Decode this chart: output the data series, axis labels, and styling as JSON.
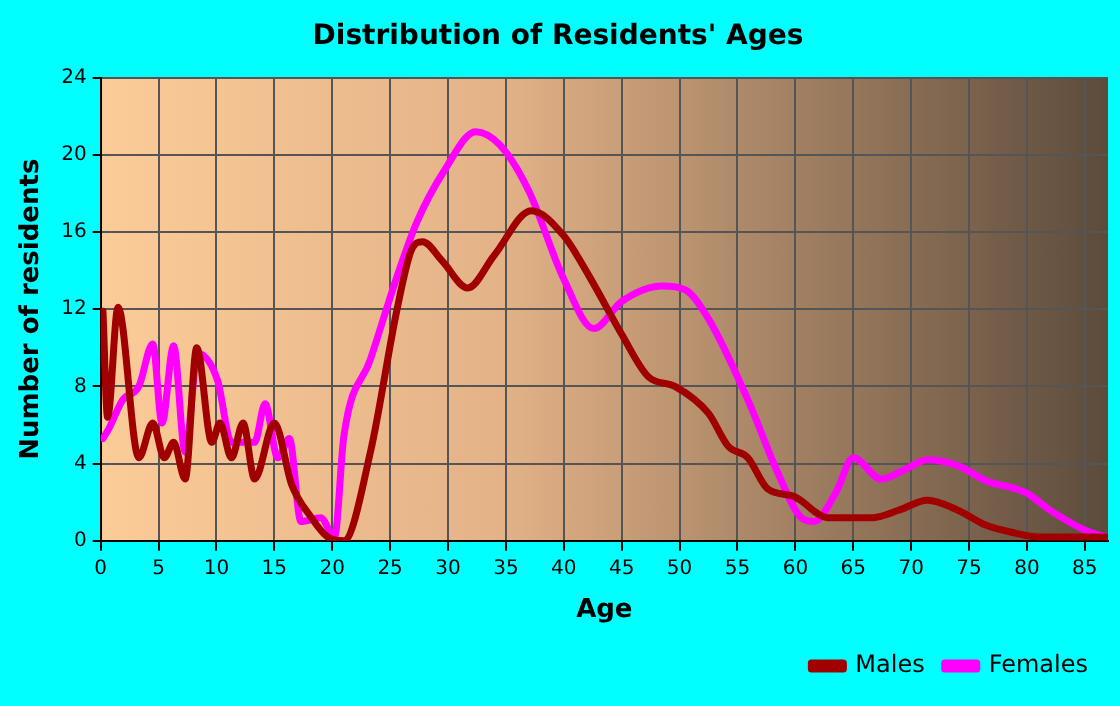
{
  "chart_data": {
    "type": "line",
    "title": "Distribution of Residents' Ages",
    "xlabel": "Age",
    "ylabel": "Number of residents",
    "xlim": [
      0,
      87
    ],
    "xticks": [
      0,
      5,
      10,
      15,
      20,
      25,
      30,
      35,
      40,
      45,
      50,
      55,
      60,
      65,
      70,
      75,
      80,
      85
    ],
    "ylim": [
      0,
      24
    ],
    "yticks": [
      0,
      4,
      8,
      12,
      16,
      20,
      24
    ],
    "grid": true,
    "legend": "bottom right",
    "marker": "none",
    "line_style": "solid",
    "series": [
      {
        "name": "Males",
        "color": "#a00000",
        "x": [
          0.2,
          0.6,
          1.5,
          3.3,
          4.5,
          5.5,
          6.3,
          7.3,
          8.3,
          9.6,
          10.3,
          11.3,
          12.3,
          13.3,
          15,
          16.5,
          18.2,
          19.6,
          21,
          23.3,
          25.6,
          26.8,
          27.8,
          29.5,
          31.7,
          34,
          37.2,
          40,
          42.2,
          45,
          47.3,
          49.6,
          52.5,
          54.2,
          55.9,
          57.6,
          59.9,
          62.8,
          66.7,
          69,
          71.4,
          74,
          76.5,
          79,
          81,
          85.6,
          87
        ],
        "values": [
          11.9,
          6.4,
          12.1,
          4.3,
          6.1,
          4.3,
          5.1,
          3.2,
          10,
          5.1,
          6.1,
          4.3,
          6.1,
          3.2,
          6.1,
          2.9,
          1.2,
          0.2,
          0,
          4.6,
          12,
          15,
          15.5,
          14.5,
          13.1,
          14.8,
          17.1,
          15.8,
          13.7,
          10.7,
          8.5,
          8,
          6.6,
          4.9,
          4.3,
          2.7,
          2.3,
          1.2,
          1.2,
          1.6,
          2.1,
          1.6,
          0.8,
          0.4,
          0.2,
          0.2,
          0.2
        ]
      },
      {
        "name": "Females",
        "color": "#ff00ff",
        "x": [
          0.2,
          0.7,
          1.9,
          3.3,
          4.5,
          5.3,
          6.3,
          7.3,
          8.4,
          10.1,
          11.3,
          13.3,
          14.2,
          15.3,
          16.3,
          17.3,
          19,
          20.2,
          21,
          23.3,
          25.6,
          27.3,
          29.7,
          32.4,
          34.5,
          37,
          39.9,
          42.6,
          45,
          48.5,
          50.5,
          52.5,
          55.9,
          58.5,
          60.5,
          61.6,
          63.5,
          65,
          67.4,
          69.5,
          71.4,
          74,
          76.5,
          79.9,
          82.2,
          85.6,
          87
        ],
        "values": [
          5.3,
          5.8,
          7.3,
          8,
          10.2,
          6.1,
          10.1,
          4.6,
          9.7,
          8.3,
          5.1,
          5.1,
          7.1,
          4.3,
          5.3,
          1,
          1.2,
          0.2,
          5.4,
          9.4,
          13.7,
          16.5,
          19.2,
          21.2,
          20.5,
          18.1,
          13.7,
          11,
          12.4,
          13.2,
          13,
          11.5,
          7.3,
          3.5,
          1.2,
          1,
          2.5,
          4.3,
          3.2,
          3.7,
          4.2,
          3.9,
          3.1,
          2.5,
          1.5,
          0.4,
          0.2
        ]
      }
    ]
  }
}
